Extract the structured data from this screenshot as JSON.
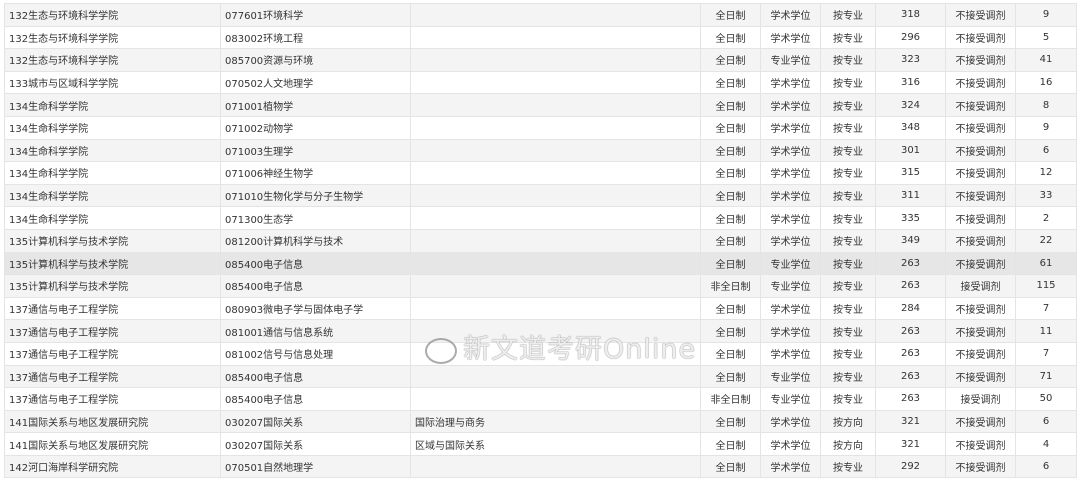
{
  "rows": [
    [
      "132生态与环境科学学院",
      "077601环境科学",
      "",
      "全日制",
      "学术学位",
      "按专业",
      "318",
      "不接受调剂",
      "9"
    ],
    [
      "132生态与环境科学学院",
      "083002环境工程",
      "",
      "全日制",
      "学术学位",
      "按专业",
      "296",
      "不接受调剂",
      "5"
    ],
    [
      "132生态与环境科学学院",
      "085700资源与环境",
      "",
      "全日制",
      "专业学位",
      "按专业",
      "323",
      "不接受调剂",
      "41"
    ],
    [
      "133城市与区域科学学院",
      "070502人文地理学",
      "",
      "全日制",
      "学术学位",
      "按专业",
      "316",
      "不接受调剂",
      "16"
    ],
    [
      "134生命科学学院",
      "071001植物学",
      "",
      "全日制",
      "学术学位",
      "按专业",
      "324",
      "不接受调剂",
      "8"
    ],
    [
      "134生命科学学院",
      "071002动物学",
      "",
      "全日制",
      "学术学位",
      "按专业",
      "348",
      "不接受调剂",
      "9"
    ],
    [
      "134生命科学学院",
      "071003生理学",
      "",
      "全日制",
      "学术学位",
      "按专业",
      "301",
      "不接受调剂",
      "6"
    ],
    [
      "134生命科学学院",
      "071006神经生物学",
      "",
      "全日制",
      "学术学位",
      "按专业",
      "315",
      "不接受调剂",
      "12"
    ],
    [
      "134生命科学学院",
      "071010生物化学与分子生物学",
      "",
      "全日制",
      "学术学位",
      "按专业",
      "311",
      "不接受调剂",
      "33"
    ],
    [
      "134生命科学学院",
      "071300生态学",
      "",
      "全日制",
      "学术学位",
      "按专业",
      "335",
      "不接受调剂",
      "2"
    ],
    [
      "135计算机科学与技术学院",
      "081200计算机科学与技术",
      "",
      "全日制",
      "学术学位",
      "按专业",
      "349",
      "不接受调剂",
      "22"
    ],
    [
      "135计算机科学与技术学院",
      "085400电子信息",
      "",
      "全日制",
      "专业学位",
      "按专业",
      "263",
      "不接受调剂",
      "61"
    ],
    [
      "135计算机科学与技术学院",
      "085400电子信息",
      "",
      "非全日制",
      "专业学位",
      "按专业",
      "263",
      "接受调剂",
      "115"
    ],
    [
      "137通信与电子工程学院",
      "080903微电子学与固体电子学",
      "",
      "全日制",
      "学术学位",
      "按专业",
      "284",
      "不接受调剂",
      "7"
    ],
    [
      "137通信与电子工程学院",
      "081001通信与信息系统",
      "",
      "全日制",
      "学术学位",
      "按专业",
      "263",
      "不接受调剂",
      "11"
    ],
    [
      "137通信与电子工程学院",
      "081002信号与信息处理",
      "",
      "全日制",
      "学术学位",
      "按专业",
      "263",
      "不接受调剂",
      "7"
    ],
    [
      "137通信与电子工程学院",
      "085400电子信息",
      "",
      "全日制",
      "专业学位",
      "按专业",
      "263",
      "不接受调剂",
      "71"
    ],
    [
      "137通信与电子工程学院",
      "085400电子信息",
      "",
      "非全日制",
      "专业学位",
      "按专业",
      "263",
      "接受调剂",
      "50"
    ],
    [
      "141国际关系与地区发展研究院",
      "030207国际关系",
      "国际治理与商务",
      "全日制",
      "学术学位",
      "按方向",
      "321",
      "不接受调剂",
      "6"
    ],
    [
      "141国际关系与地区发展研究院",
      "030207国际关系",
      "区域与国际关系",
      "全日制",
      "学术学位",
      "按方向",
      "321",
      "不接受调剂",
      "4"
    ],
    [
      "142河口海岸科学研究院",
      "070501自然地理学",
      "",
      "全日制",
      "学术学位",
      "按专业",
      "292",
      "不接受调剂",
      "6"
    ]
  ],
  "highlight_row": 11,
  "watermark": "新文道考研Online"
}
